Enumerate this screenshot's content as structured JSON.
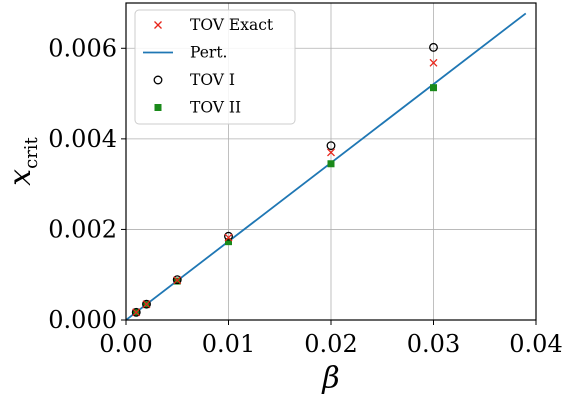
{
  "chart_data": {
    "type": "scatter",
    "title": "",
    "xlabel": "β",
    "ylabel_main": "x",
    "ylabel_sub": "crit",
    "xlim": [
      0.0,
      0.04
    ],
    "ylim": [
      0.0,
      0.007
    ],
    "xticks": [
      0.0,
      0.01,
      0.02,
      0.03,
      0.04
    ],
    "xtick_labels": [
      "0.00",
      "0.01",
      "0.02",
      "0.03",
      "0.04"
    ],
    "yticks": [
      0.0,
      0.002,
      0.004,
      0.006
    ],
    "ytick_labels": [
      "0.000",
      "0.002",
      "0.004",
      "0.006"
    ],
    "grid": true,
    "legend_position": "top-left",
    "series": [
      {
        "name": "TOV Exact",
        "kind": "marker-x",
        "color": "#e8261c",
        "x": [
          0.001,
          0.002,
          0.005,
          0.01,
          0.02,
          0.03
        ],
        "y": [
          0.00017,
          0.00035,
          0.00088,
          0.00182,
          0.0037,
          0.00568
        ]
      },
      {
        "name": "Pert.",
        "kind": "line",
        "color": "#1f77b4",
        "x": [
          0.0,
          0.039
        ],
        "y": [
          0.0,
          0.00677
        ]
      },
      {
        "name": "TOV I",
        "kind": "marker-open-circle",
        "color": "#000000",
        "x": [
          0.001,
          0.002,
          0.005,
          0.01,
          0.02,
          0.03
        ],
        "y": [
          0.00017,
          0.00035,
          0.00089,
          0.00185,
          0.00385,
          0.00602
        ]
      },
      {
        "name": "TOV II",
        "kind": "marker-square",
        "color": "#1a8a1a",
        "x": [
          0.001,
          0.002,
          0.005,
          0.01,
          0.02,
          0.03
        ],
        "y": [
          0.00017,
          0.00034,
          0.00086,
          0.00173,
          0.00345,
          0.00513
        ]
      }
    ]
  }
}
